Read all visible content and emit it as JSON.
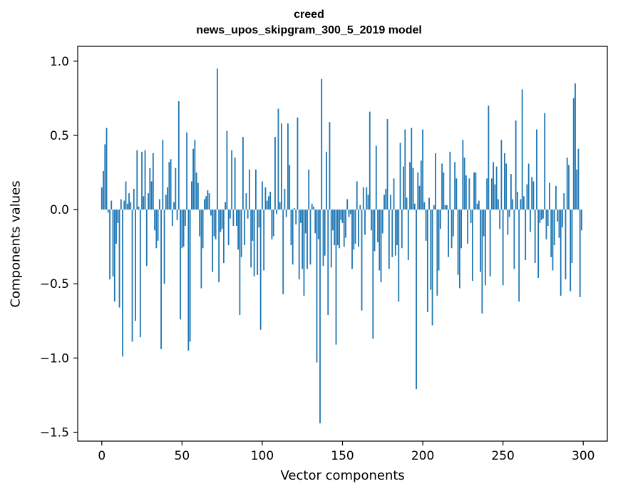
{
  "chart_data": {
    "type": "bar",
    "title": "creed",
    "subtitle": "news_upos_skipgram_300_5_2019 model",
    "xlabel": "Vector components",
    "ylabel": "Components values",
    "xlim": [
      -15,
      315
    ],
    "ylim": [
      -1.56,
      1.1
    ],
    "xticks": [
      0,
      50,
      100,
      150,
      200,
      250,
      300
    ],
    "xtick_labels": [
      "0",
      "50",
      "100",
      "150",
      "200",
      "250",
      "300"
    ],
    "yticks": [
      1.0,
      0.5,
      0.0,
      -0.5,
      -1.0,
      -1.5
    ],
    "ytick_labels": [
      "1.0",
      "0.5",
      "0.0",
      "−0.5",
      "−1.0",
      "−1.5"
    ],
    "grid": false,
    "bar_color": "#1f77b4",
    "values": [
      0.15,
      0.26,
      0.44,
      0.55,
      -0.02,
      -0.47,
      0.06,
      -0.45,
      -0.62,
      -0.23,
      -0.09,
      -0.66,
      0.07,
      -0.99,
      0.06,
      0.19,
      0.04,
      0.11,
      0.05,
      -0.89,
      0.14,
      -0.75,
      0.4,
      0.02,
      -0.86,
      0.39,
      0.09,
      0.4,
      -0.38,
      0.11,
      0.28,
      0.19,
      0.38,
      -0.14,
      -0.26,
      -0.21,
      0.07,
      -0.94,
      0.47,
      -0.5,
      0.1,
      0.15,
      0.32,
      0.34,
      -0.11,
      0.05,
      0.28,
      -0.07,
      0.73,
      -0.74,
      -0.26,
      -0.25,
      -0.11,
      0.52,
      -0.95,
      -0.89,
      0.19,
      0.41,
      0.47,
      0.25,
      0.18,
      -0.18,
      -0.53,
      -0.26,
      0.07,
      0.09,
      0.13,
      0.11,
      -0.04,
      -0.42,
      -0.18,
      -0.2,
      0.95,
      -0.49,
      -0.15,
      -0.13,
      -0.36,
      0.05,
      0.53,
      -0.24,
      -0.06,
      0.4,
      -0.11,
      0.35,
      -0.11,
      -0.27,
      -0.71,
      -0.32,
      0.49,
      -0.24,
      0.11,
      -0.06,
      0.27,
      -0.39,
      -0.21,
      -0.45,
      0.27,
      -0.44,
      -0.12,
      -0.81,
      0.19,
      -0.41,
      0.15,
      0.06,
      0.09,
      0.12,
      -0.2,
      -0.18,
      0.49,
      -0.03,
      0.68,
      0.05,
      0.58,
      -0.57,
      0.14,
      -0.05,
      0.58,
      0.3,
      -0.24,
      -0.37,
      0.01,
      -0.1,
      0.62,
      -0.47,
      -0.09,
      -0.4,
      -0.58,
      -0.16,
      -0.4,
      0.27,
      -0.37,
      0.04,
      0.02,
      -0.16,
      -1.03,
      -0.2,
      -1.44,
      0.88,
      -0.38,
      -0.31,
      0.39,
      -0.71,
      0.59,
      -0.39,
      -0.14,
      -0.24,
      -0.91,
      -0.24,
      -0.26,
      -0.07,
      -0.09,
      -0.25,
      -0.19,
      0.07,
      -0.05,
      -0.03,
      -0.4,
      -0.27,
      -0.23,
      0.19,
      -0.25,
      0.03,
      -0.68,
      0.15,
      -0.17,
      0.15,
      0.1,
      0.66,
      -0.14,
      -0.87,
      -0.28,
      0.43,
      -0.22,
      -0.41,
      -0.49,
      -0.16,
      0.1,
      0.14,
      0.61,
      -0.4,
      0.1,
      -0.32,
      0.21,
      -0.31,
      -0.24,
      -0.62,
      0.45,
      -0.26,
      0.29,
      0.54,
      0.08,
      -0.34,
      0.32,
      0.55,
      0.28,
      0.04,
      -1.21,
      0.25,
      0.16,
      0.33,
      0.54,
      0.05,
      -0.21,
      -0.69,
      0.08,
      -0.54,
      -0.78,
      0.03,
      0.38,
      -0.58,
      -0.41,
      -0.13,
      0.31,
      0.25,
      0.03,
      0.03,
      -0.32,
      0.39,
      -0.26,
      -0.18,
      0.32,
      0.21,
      -0.44,
      -0.53,
      -0.26,
      0.47,
      0.35,
      0.23,
      -0.23,
      0.21,
      -0.09,
      -0.48,
      0.25,
      0.25,
      0.04,
      0.06,
      -0.42,
      -0.7,
      -0.18,
      -0.51,
      0.21,
      0.7,
      -0.45,
      0.21,
      0.32,
      0.17,
      0.29,
      0.07,
      -0.13,
      0.47,
      -0.51,
      0.38,
      0.31,
      -0.17,
      -0.05,
      0.24,
      0.07,
      -0.4,
      0.6,
      0.12,
      -0.62,
      0.07,
      0.81,
      0.09,
      -0.34,
      0.17,
      0.31,
      -0.15,
      0.22,
      0.19,
      -0.36,
      0.54,
      -0.46,
      -0.09,
      -0.07,
      -0.06,
      0.65,
      -0.2,
      -0.11,
      0.18,
      -0.32,
      -0.41,
      -0.24,
      0.16,
      -0.08,
      -0.19,
      -0.58,
      -0.12,
      0.11,
      -0.47,
      0.35,
      0.3,
      -0.55,
      -0.36,
      0.75,
      0.85,
      0.27,
      0.41,
      -0.59,
      -0.14
    ]
  }
}
